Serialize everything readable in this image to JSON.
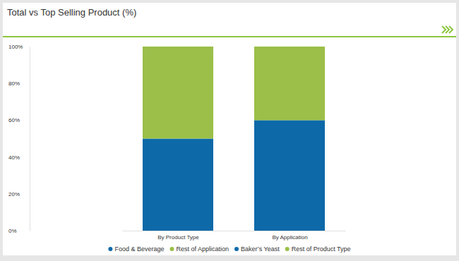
{
  "chart_data": {
    "type": "bar",
    "title": "Total vs Top Selling Product (%)",
    "categories": [
      "By Product Type",
      "By Application"
    ],
    "series": [
      {
        "name": "Food & Beverage",
        "color": "#0d69a8",
        "values": [
          null,
          60
        ]
      },
      {
        "name": "Rest of Application",
        "color": "#9bbf48",
        "values": [
          null,
          40
        ]
      },
      {
        "name": "Baker’s Yeast",
        "color": "#0d69a8",
        "values": [
          50,
          null
        ]
      },
      {
        "name": "Rest of Product Type",
        "color": "#9bbf48",
        "values": [
          50,
          null
        ]
      }
    ],
    "stacked": true,
    "ylim": [
      0,
      100
    ],
    "yticks": [
      {
        "value": 0,
        "label": "0%"
      },
      {
        "value": 20,
        "label": "20%"
      },
      {
        "value": 40,
        "label": "40%"
      },
      {
        "value": 60,
        "label": "60%"
      },
      {
        "value": 80,
        "label": "80%"
      },
      {
        "value": 100,
        "label": "100%"
      }
    ],
    "legend": "bottom"
  }
}
